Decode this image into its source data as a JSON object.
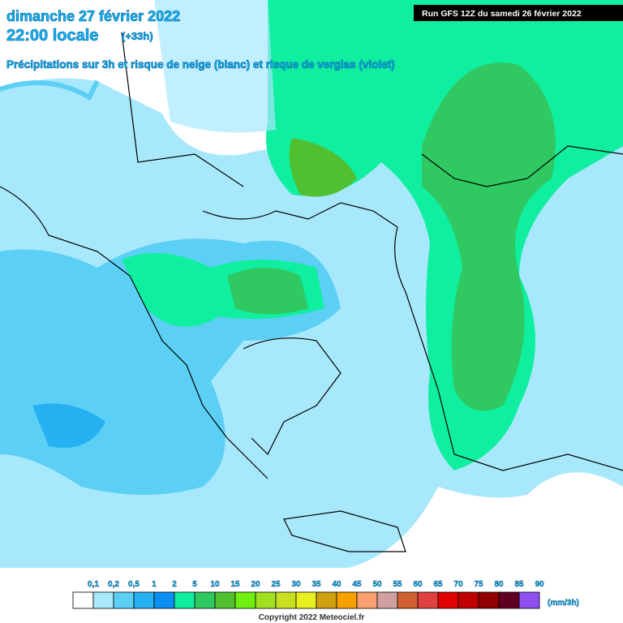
{
  "header": {
    "date": "dimanche 27 février 2022",
    "time": "22:00 locale",
    "lead": "(+33h)",
    "subtitle": "Précipitations sur 3h et risque de neige (blanc) et risque de verglas (violet)",
    "run": "Run GFS 12Z du samedi 26 février 2022"
  },
  "legend": {
    "labels": [
      "0,1",
      "0,2",
      "0,5",
      "1",
      "2",
      "5",
      "10",
      "15",
      "20",
      "25",
      "30",
      "35",
      "40",
      "45",
      "50",
      "55",
      "60",
      "65",
      "70",
      "75",
      "80",
      "85",
      "90"
    ],
    "colors": [
      "#ffffff",
      "#a8e8fc",
      "#5ccff5",
      "#26b1f2",
      "#0a8ef0",
      "#10eea0",
      "#30c860",
      "#50c030",
      "#70f010",
      "#a0e020",
      "#c8e020",
      "#e8f020",
      "#d0a010",
      "#f8a000",
      "#f8a070",
      "#d0a0a0",
      "#d06030",
      "#e04040",
      "#e00000",
      "#c00000",
      "#900000",
      "#600020",
      "#9050f0"
    ],
    "unit": "(mm/3h)"
  },
  "footer": {
    "copyright": "Copyright 2022 Meteociel.fr"
  }
}
